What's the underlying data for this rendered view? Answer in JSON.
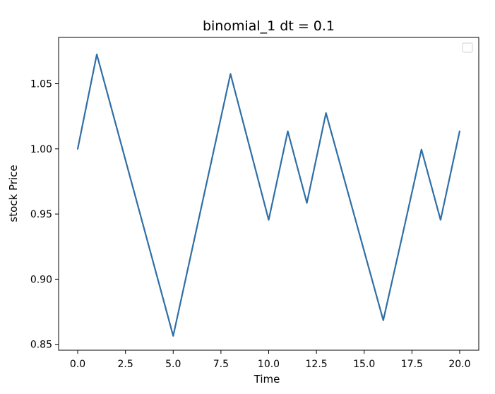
{
  "chart_data": {
    "type": "line",
    "title": "binomial_1 dt = 0.1",
    "xlabel": "Time",
    "ylabel": "stock Price",
    "xlim": [
      -1.0,
      21.0
    ],
    "ylim": [
      0.8455,
      1.0855
    ],
    "x_ticks": [
      0,
      2.5,
      5,
      7.5,
      10,
      12.5,
      15,
      17.5,
      20
    ],
    "x_tick_labels": [
      "0.0",
      "2.5",
      "5.0",
      "7.5",
      "10.0",
      "12.5",
      "15.0",
      "17.5",
      "20.0"
    ],
    "y_ticks": [
      0.85,
      0.9,
      0.95,
      1.0,
      1.05
    ],
    "y_tick_labels": [
      "0.85",
      "0.90",
      "0.95",
      "1.00",
      "1.05"
    ],
    "grid": false,
    "legend": {
      "location": "upper right",
      "entries": []
    },
    "series": [
      {
        "color": "#2f6fa6",
        "x": [
          0,
          1,
          2,
          3,
          4,
          5,
          6,
          7,
          8,
          9,
          10,
          11,
          12,
          13,
          14,
          15,
          16,
          17,
          18,
          19,
          20
        ],
        "values": [
          1.0,
          1.0725,
          1.0185,
          0.9645,
          0.9105,
          0.8565,
          0.9235,
          0.9905,
          1.0575,
          1.0015,
          0.9455,
          1.0135,
          0.9585,
          1.0275,
          0.9745,
          0.9215,
          0.8685,
          0.9335,
          0.9995,
          0.9455,
          1.0135
        ]
      }
    ]
  }
}
